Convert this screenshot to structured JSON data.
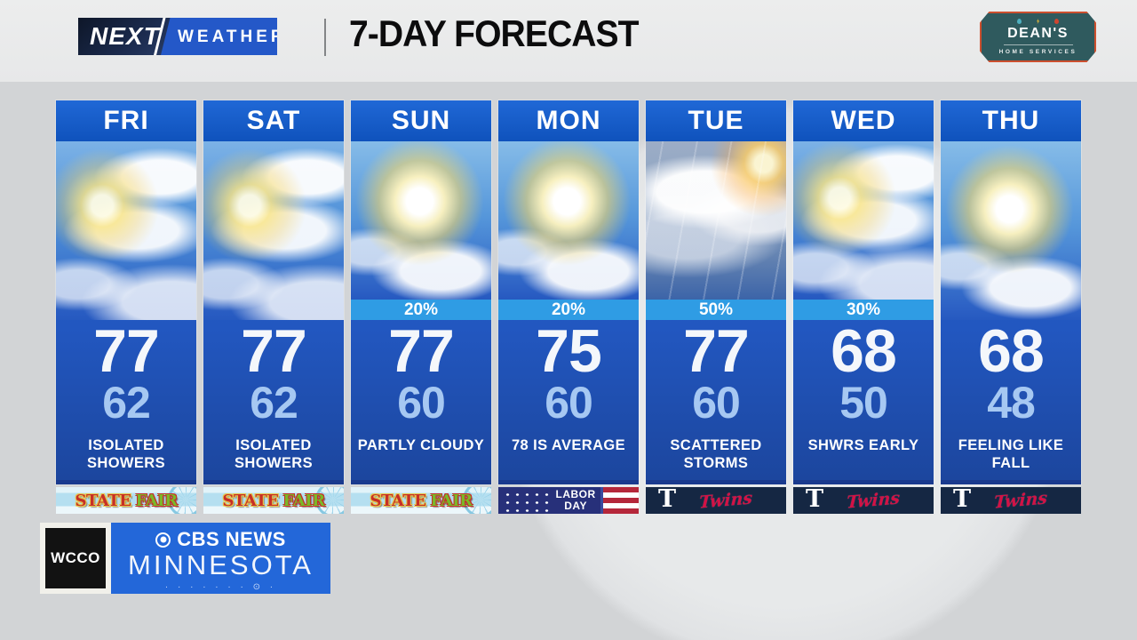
{
  "header": {
    "brand": {
      "next": "NEXT",
      "weather": "WEATHER"
    },
    "title": "7-DAY FORECAST",
    "sponsor": {
      "name": "DEAN'S",
      "subtitle": "HOME SERVICES",
      "icons": [
        "water-drop",
        "lightning-bolt",
        "flame"
      ]
    }
  },
  "forecast": {
    "days": [
      {
        "label": "FRI",
        "icon": "sun-and-clouds",
        "precip": "",
        "high": "77",
        "low": "62",
        "condition": "ISOLATED SHOWERS",
        "banner": "state-fair"
      },
      {
        "label": "SAT",
        "icon": "sun-and-clouds",
        "precip": "",
        "high": "77",
        "low": "62",
        "condition": "ISOLATED SHOWERS",
        "banner": "state-fair"
      },
      {
        "label": "SUN",
        "icon": "mostly-sunny",
        "precip": "20%",
        "high": "77",
        "low": "60",
        "condition": "PARTLY CLOUDY",
        "banner": "state-fair"
      },
      {
        "label": "MON",
        "icon": "mostly-sunny",
        "precip": "20%",
        "high": "75",
        "low": "60",
        "condition": "78 IS AVERAGE",
        "banner": "labor-day"
      },
      {
        "label": "TUE",
        "icon": "rainy-storm",
        "precip": "50%",
        "high": "77",
        "low": "60",
        "condition": "SCATTERED STORMS",
        "banner": "twins"
      },
      {
        "label": "WED",
        "icon": "sun-and-clouds",
        "precip": "30%",
        "high": "68",
        "low": "50",
        "condition": "SHWRS EARLY",
        "banner": "twins"
      },
      {
        "label": "THU",
        "icon": "mostly-sunny",
        "precip": "",
        "high": "68",
        "low": "48",
        "condition": "FEELING LIKE FALL",
        "banner": "twins"
      }
    ],
    "banners": {
      "state_fair": {
        "line1": "STATE",
        "line2": "FAIR"
      },
      "labor_day": {
        "line1": "LABOR",
        "line2": "DAY"
      },
      "twins": {
        "t": "T",
        "script": "Twins"
      }
    }
  },
  "station": {
    "call_letters": "WCCO",
    "network": "CBS NEWS",
    "region": "MINNESOTA",
    "dots": "· · · · · · · ⊙ ·"
  },
  "colors": {
    "topbar": "#eceded",
    "brand_blue": "#2458c8",
    "day_header_top": "#2068d6",
    "day_header_bottom": "#0f52bc",
    "precip_bar": "#2f9ce4",
    "low_temp": "#a6c8f2",
    "sf_red": "#c62f28",
    "sf_green": "#7ab829",
    "labor_navy": "#27307a",
    "labor_red": "#b5273a",
    "twins_navy": "#152743",
    "twins_red": "#d31145",
    "cbs_blue": "#2367d9",
    "deans_teal": "#2f5a5e",
    "deans_orange": "#cc4f2e"
  }
}
